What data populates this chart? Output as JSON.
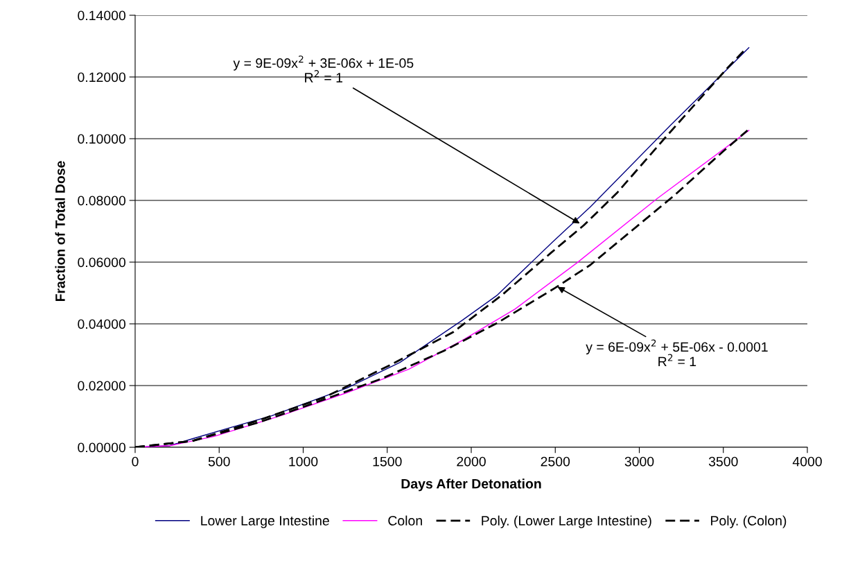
{
  "chart_data": {
    "type": "line",
    "xlabel": "Days After Detonation",
    "ylabel": "Fraction of Total Dose",
    "xlim": [
      0,
      4000
    ],
    "xticks": [
      0,
      500,
      1000,
      1500,
      2000,
      2500,
      3000,
      3500,
      4000
    ],
    "ylim": [
      0,
      0.14
    ],
    "yticks": [
      {
        "value": 0,
        "label": "0.00000"
      },
      {
        "value": 0.02,
        "label": "0.02000"
      },
      {
        "value": 0.04,
        "label": "0.04000"
      },
      {
        "value": 0.06,
        "label": "0.06000"
      },
      {
        "value": 0.08,
        "label": "0.08000"
      },
      {
        "value": 0.1,
        "label": "0.10000"
      },
      {
        "value": 0.12,
        "label": "0.12000"
      },
      {
        "value": 0.14,
        "label": "0.14000"
      }
    ],
    "grid": "y",
    "legend": "bottom",
    "series": [
      {
        "name": "Lower Large Intestine",
        "color": "#000080",
        "line_style": "solid",
        "x": [
          0,
          205,
          337,
          574,
          812,
          1260,
          1576,
          1945,
          2155,
          2485,
          2709,
          3183,
          3652
        ],
        "values": [
          0,
          0.0005,
          0.0027,
          0.0065,
          0.0102,
          0.0192,
          0.0275,
          0.0411,
          0.0493,
          0.0666,
          0.0779,
          0.1042,
          0.1295
        ]
      },
      {
        "name": "Colon",
        "color": "#ff00ff",
        "line_style": "solid",
        "x": [
          0,
          205,
          469,
          864,
          1260,
          1629,
          1945,
          2261,
          2630,
          3104,
          3652
        ],
        "values": [
          0,
          0.0005,
          0.0035,
          0.0102,
          0.0177,
          0.0253,
          0.0346,
          0.0448,
          0.0598,
          0.0805,
          0.1027
        ]
      },
      {
        "name": "Poly. (Lower Large Intestine)",
        "color": "#000000",
        "line_style": "dashed",
        "x": [
          0,
          337,
          733,
          1128,
          1523,
          1892,
          2182,
          2472,
          2669,
          2867,
          3157,
          3526,
          3631
        ],
        "values": [
          0,
          0.002,
          0.0087,
          0.0162,
          0.0268,
          0.0373,
          0.0493,
          0.0629,
          0.0719,
          0.0824,
          0.1005,
          0.123,
          0.129
        ]
      },
      {
        "name": "Poly. (Colon)",
        "color": "#000000",
        "line_style": "dashed",
        "x": [
          0,
          337,
          733,
          1049,
          1470,
          1839,
          2155,
          2498,
          2709,
          3210,
          3499,
          3644
        ],
        "values": [
          0,
          0.002,
          0.008,
          0.014,
          0.0223,
          0.0313,
          0.0403,
          0.0516,
          0.0591,
          0.0817,
          0.0959,
          0.1027
        ]
      }
    ],
    "annotations": [
      {
        "text": "y = 9E-09x$^{2}$ + 3E-06x + 1E-05\nR$^{2}$ = 1",
        "x": 2656,
        "y": 0.0722
      },
      {
        "text": "y = 6E-09x$^{2}$ + 5E-06x - 0.0001\nR$^{2}$ = 1",
        "x": 2503,
        "y": 0.0523
      }
    ]
  }
}
